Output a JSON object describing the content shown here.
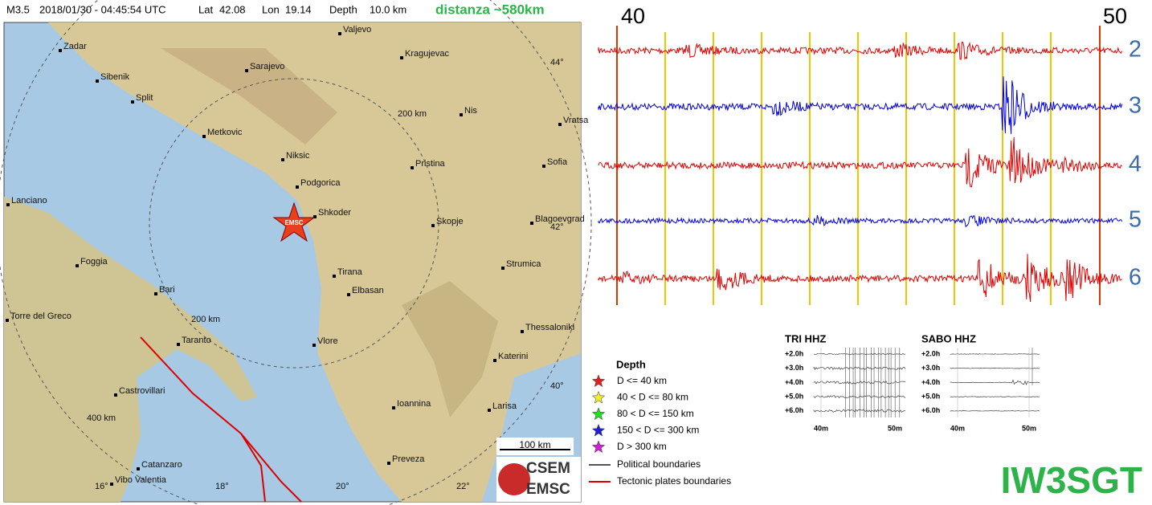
{
  "header": {
    "event": "M3.5",
    "datetime": "2018/01/30 - 04:45:54 UTC",
    "lat_label": "Lat",
    "lat": "42.08",
    "lon_label": "Lon",
    "lon": "19.14",
    "depth_label": "Depth",
    "depth": "10.0 km",
    "distance": "distanza ~580km"
  },
  "map": {
    "cities": [
      "Zadar",
      "Sibenik",
      "Split",
      "Valjevo",
      "Sarajevo",
      "Kragujevac",
      "Metkovic",
      "Nis",
      "Vratsa",
      "Niksic",
      "Pristina",
      "Sofia",
      "Podgorica",
      "Lanciano",
      "Shkoder",
      "Skopje",
      "Blagoevgrad",
      "Foggia",
      "Strumica",
      "Tirana",
      "Elbasan",
      "Bari",
      "Torre del Greco",
      "Thessaloniki",
      "Taranto",
      "Vlore",
      "Katerini",
      "Castrovillari",
      "Ioannina",
      "Larisa",
      "Catanzaro",
      "Preveza",
      "Vibo Valentia"
    ],
    "lat_labels": [
      "44°",
      "42°",
      "40°"
    ],
    "lon_labels": [
      "16°",
      "18°",
      "20°",
      "22°"
    ],
    "rings": [
      "200 km",
      "200 km",
      "400 km"
    ],
    "marker": "EMSC",
    "scale": "100 km"
  },
  "legend": {
    "title": "Depth",
    "items": [
      "D <= 40 km",
      "40 < D <= 80 km",
      "80 < D <= 150 km",
      "150 < D <= 300 km",
      "D > 300 km"
    ],
    "boundaries": [
      "Political boundaries",
      "Tectonic plates boundaries"
    ]
  },
  "logo": [
    "CSEM",
    "EMSC"
  ],
  "seismogram": {
    "time_labels": [
      "40",
      "50"
    ],
    "traces": [
      "2",
      "3",
      "4",
      "5",
      "6"
    ]
  },
  "helicorders": [
    {
      "title": "TRI HHZ",
      "rows": [
        "+2.0h",
        "+3.0h",
        "+4.0h",
        "+5.0h",
        "+6.0h"
      ],
      "x_labels": [
        "40m",
        "50m"
      ]
    },
    {
      "title": "SABO HHZ",
      "rows": [
        "+2.0h",
        "+3.0h",
        "+4.0h",
        "+5.0h",
        "+6.0h"
      ],
      "x_labels": [
        "40m",
        "50m"
      ]
    }
  ],
  "callsign": "IW3SGT"
}
